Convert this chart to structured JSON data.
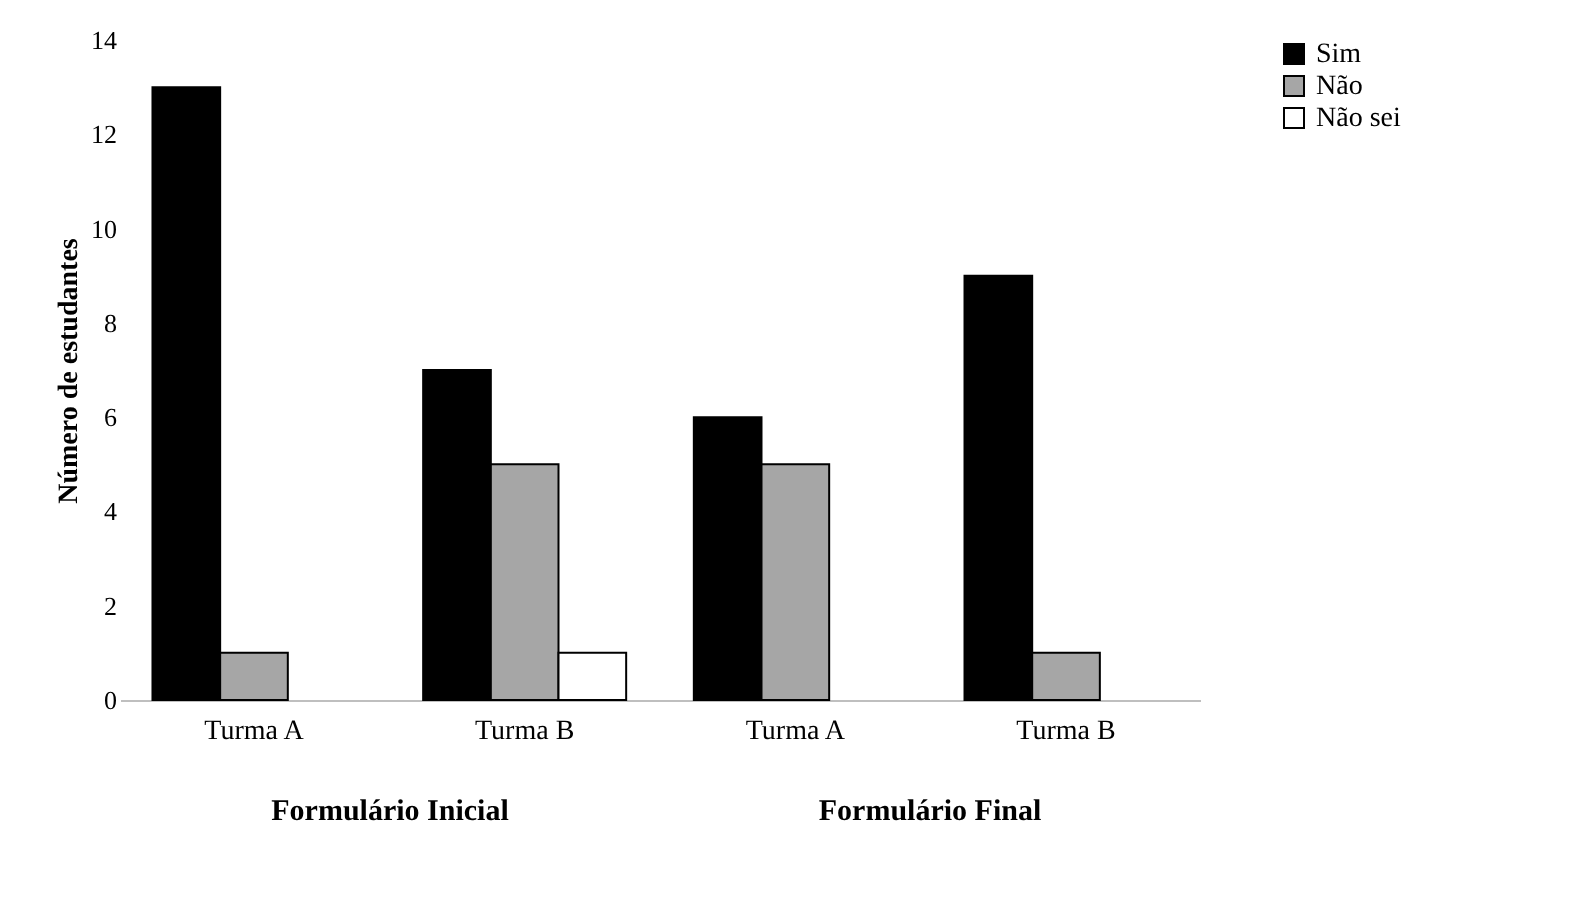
{
  "chart_data": {
    "type": "bar",
    "ylabel": "Número de estudantes",
    "categories": [
      "Turma A",
      "Turma B",
      "Turma A",
      "Turma B"
    ],
    "series": [
      {
        "name": "Sim",
        "color": "#000000",
        "values": [
          13,
          7,
          6,
          9
        ]
      },
      {
        "name": "Não",
        "color": "#a6a6a6",
        "values": [
          1,
          5,
          5,
          1
        ]
      },
      {
        "name": "Não sei",
        "color": "#ffffff",
        "values": [
          null,
          1,
          null,
          null
        ]
      }
    ],
    "ylim": [
      0,
      14
    ],
    "yticks": [
      0,
      2,
      4,
      6,
      8,
      10,
      12,
      14
    ],
    "grid": false,
    "legend": "right",
    "annotations": [
      "Formulário Inicial",
      "Formulário Final"
    ]
  }
}
